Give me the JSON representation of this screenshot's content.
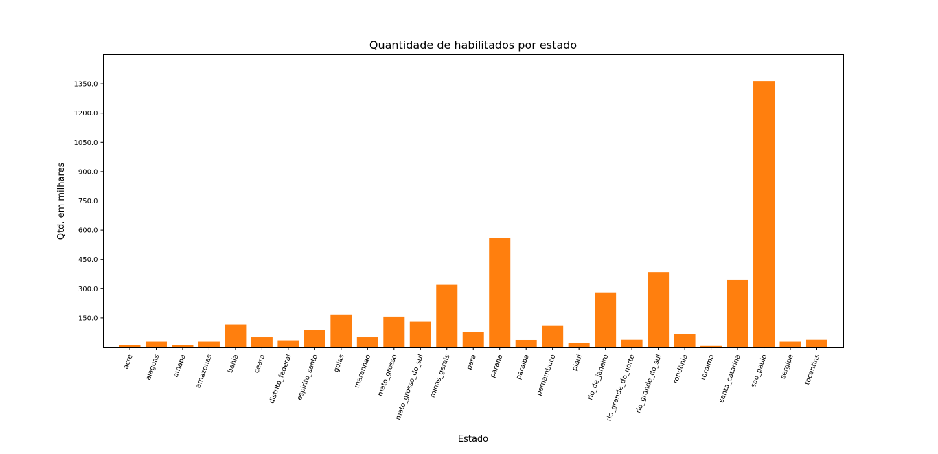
{
  "chart_data": {
    "type": "bar",
    "title": "Quantidade de habilitados por estado",
    "xlabel": "Estado",
    "ylabel": "Qtd. em milhares",
    "categories": [
      "acre",
      "alagoas",
      "amapa",
      "amazonas",
      "bahia",
      "ceara",
      "distrito_federal",
      "espirito_santo",
      "goias",
      "maranhao",
      "mato_grosso",
      "mato_grosso_do_sul",
      "minas_gerais",
      "para",
      "parana",
      "paraiba",
      "pernambuco",
      "piaui",
      "rio_de_janeiro",
      "rio_grande_do_norte",
      "rio_grande_do_sul",
      "rondônia",
      "roraima",
      "santa_catarina",
      "sao_paulo",
      "sergipe",
      "tocantins"
    ],
    "values": [
      9,
      28,
      10,
      28,
      116,
      51,
      35,
      88,
      168,
      51,
      157,
      130,
      320,
      76,
      559,
      37,
      112,
      20,
      281,
      38,
      385,
      66,
      6,
      347,
      1364,
      28,
      38
    ],
    "yticks": [
      "150.0",
      "300.0",
      "450.0",
      "600.0",
      "750.0",
      "900.0",
      "1050.0",
      "1200.0",
      "1350.0"
    ],
    "ytick_values": [
      150,
      300,
      450,
      600,
      750,
      900,
      1050,
      1200,
      1350
    ],
    "ylim": [
      0,
      1500
    ],
    "grid": false,
    "bar_color": "#ff7f0e"
  }
}
